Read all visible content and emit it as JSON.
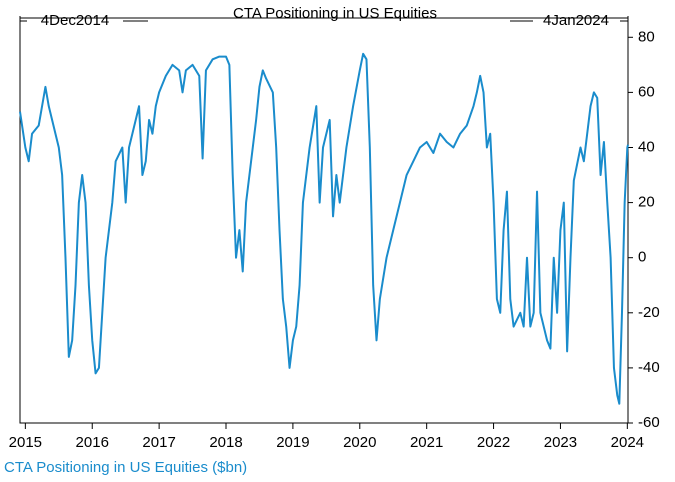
{
  "chart_data": {
    "type": "line",
    "title": "CTA Positioning in US Equities",
    "start_label": "4Dec2014",
    "end_label": "4Jan2024",
    "x": [
      2014.92,
      2015.0,
      2015.05,
      2015.1,
      2015.2,
      2015.3,
      2015.35,
      2015.45,
      2015.5,
      2015.55,
      2015.6,
      2015.65,
      2015.7,
      2015.75,
      2015.8,
      2015.85,
      2015.9,
      2015.95,
      2016.0,
      2016.05,
      2016.1,
      2016.15,
      2016.2,
      2016.3,
      2016.35,
      2016.45,
      2016.5,
      2016.55,
      2016.6,
      2016.7,
      2016.75,
      2016.8,
      2016.85,
      2016.9,
      2016.95,
      2017.0,
      2017.1,
      2017.2,
      2017.3,
      2017.35,
      2017.4,
      2017.5,
      2017.6,
      2017.65,
      2017.7,
      2017.8,
      2017.9,
      2018.0,
      2018.05,
      2018.1,
      2018.15,
      2018.2,
      2018.25,
      2018.3,
      2018.4,
      2018.45,
      2018.5,
      2018.55,
      2018.6,
      2018.7,
      2018.75,
      2018.8,
      2018.85,
      2018.9,
      2018.95,
      2019.0,
      2019.05,
      2019.1,
      2019.15,
      2019.25,
      2019.35,
      2019.4,
      2019.45,
      2019.55,
      2019.6,
      2019.65,
      2019.7,
      2019.8,
      2019.9,
      2020.0,
      2020.05,
      2020.1,
      2020.15,
      2020.2,
      2020.25,
      2020.3,
      2020.4,
      2020.5,
      2020.6,
      2020.7,
      2020.8,
      2020.9,
      2021.0,
      2021.1,
      2021.2,
      2021.3,
      2021.4,
      2021.5,
      2021.6,
      2021.7,
      2021.75,
      2021.8,
      2021.85,
      2021.9,
      2021.95,
      2022.0,
      2022.05,
      2022.1,
      2022.15,
      2022.2,
      2022.25,
      2022.3,
      2022.4,
      2022.45,
      2022.5,
      2022.55,
      2022.6,
      2022.65,
      2022.7,
      2022.8,
      2022.85,
      2022.9,
      2022.95,
      2023.0,
      2023.05,
      2023.1,
      2023.15,
      2023.2,
      2023.3,
      2023.35,
      2023.45,
      2023.5,
      2023.55,
      2023.6,
      2023.65,
      2023.7,
      2023.75,
      2023.8,
      2023.85,
      2023.88,
      2023.92,
      2023.96,
      2024.0,
      2024.01
    ],
    "series": [
      {
        "name": "CTA Positioning in US Equities ($bn)",
        "color": "#1a8ccc",
        "values": [
          53,
          40,
          35,
          45,
          48,
          62,
          55,
          45,
          40,
          30,
          0,
          -36,
          -30,
          -10,
          20,
          30,
          20,
          -10,
          -30,
          -42,
          -40,
          -20,
          0,
          20,
          35,
          40,
          20,
          40,
          45,
          55,
          30,
          35,
          50,
          45,
          55,
          60,
          66,
          70,
          68,
          60,
          68,
          70,
          66,
          36,
          68,
          72,
          73,
          73,
          70,
          30,
          0,
          10,
          -5,
          20,
          40,
          50,
          62,
          68,
          65,
          60,
          40,
          10,
          -15,
          -25,
          -40,
          -30,
          -25,
          -10,
          20,
          40,
          55,
          20,
          40,
          50,
          15,
          30,
          20,
          40,
          55,
          68,
          74,
          72,
          40,
          -10,
          -30,
          -15,
          0,
          10,
          20,
          30,
          35,
          40,
          42,
          38,
          45,
          42,
          40,
          45,
          48,
          55,
          60,
          66,
          60,
          40,
          45,
          20,
          -15,
          -20,
          10,
          24,
          -15,
          -25,
          -20,
          -25,
          0,
          -25,
          -20,
          24,
          -20,
          -30,
          -33,
          0,
          -20,
          10,
          20,
          -34,
          0,
          28,
          40,
          35,
          55,
          60,
          58,
          30,
          42,
          20,
          0,
          -40,
          -50,
          -53,
          -20,
          20,
          40,
          41
        ]
      }
    ],
    "xlim": [
      2014.92,
      2024.01
    ],
    "xticks": [
      2015,
      2016,
      2017,
      2018,
      2019,
      2020,
      2021,
      2022,
      2023,
      2024
    ],
    "ylim": [
      -60,
      87
    ],
    "yticks": [
      80,
      60,
      40,
      20,
      0,
      -20,
      -40,
      -60
    ],
    "grid": false
  }
}
